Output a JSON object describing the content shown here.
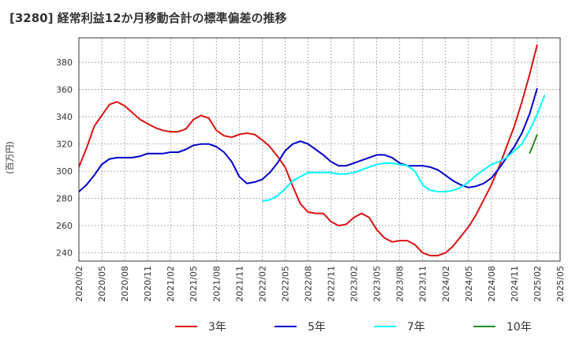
{
  "title": "[3280]  経常利益12か月移動合計の標準偏差の推移",
  "chart_data": {
    "type": "line",
    "title": "[3280]  経常利益12か月移動合計の標準偏差の推移",
    "ylabel": "(百万円)",
    "xlabel": "",
    "ylim": [
      234,
      398
    ],
    "yticks": [
      240,
      260,
      280,
      300,
      320,
      340,
      360,
      380
    ],
    "xlim": [
      "2020-02",
      "2025-05"
    ],
    "xticks": [
      "2020/02",
      "2020/05",
      "2020/08",
      "2020/11",
      "2021/02",
      "2021/05",
      "2021/08",
      "2021/11",
      "2022/02",
      "2022/05",
      "2022/08",
      "2022/11",
      "2023/02",
      "2023/05",
      "2023/08",
      "2023/11",
      "2024/02",
      "2024/05",
      "2024/08",
      "2024/11",
      "2025/02",
      "2025/05"
    ],
    "grid": true,
    "legend_position": "bottom",
    "series": [
      {
        "name": "3年",
        "color": "#dd1111",
        "start": "2020-02",
        "values": [
          303,
          317,
          333,
          341,
          349,
          351,
          348,
          343,
          338,
          335,
          332,
          330,
          329,
          329,
          331,
          338,
          341,
          339,
          330,
          326,
          325,
          327,
          328,
          327,
          323,
          318,
          311,
          303,
          289,
          276,
          270,
          269,
          269,
          263,
          260,
          261,
          266,
          269,
          266,
          257,
          251,
          248,
          249,
          249,
          246,
          240,
          238,
          238,
          240,
          245,
          252,
          259,
          268,
          279,
          290,
          303,
          318,
          333,
          351,
          371,
          393
        ]
      },
      {
        "name": "5年",
        "color": "#0000cc",
        "start": "2020-02",
        "values": [
          285,
          290,
          297,
          305,
          309,
          310,
          310,
          310,
          311,
          313,
          313,
          313,
          314,
          314,
          316,
          319,
          320,
          320,
          318,
          314,
          307,
          296,
          291,
          292,
          294,
          299,
          306,
          315,
          320,
          322,
          320,
          316,
          312,
          307,
          304,
          304,
          306,
          308,
          310,
          312,
          312,
          310,
          306,
          304,
          304,
          304,
          303,
          301,
          297,
          293,
          290,
          288,
          289,
          291,
          295,
          302,
          310,
          318,
          328,
          342,
          361
        ]
      },
      {
        "name": "7年",
        "color": "#00ffff",
        "start": "2022-02",
        "values": [
          278,
          279,
          282,
          287,
          293,
          296,
          299,
          299,
          299,
          299,
          298,
          298,
          299,
          301,
          303,
          305,
          306,
          306,
          305,
          304,
          300,
          290,
          286,
          285,
          285,
          286,
          288,
          292,
          297,
          301,
          305,
          307,
          310,
          315,
          320,
          330,
          342,
          356
        ]
      },
      {
        "name": "10年",
        "color": "#228b22",
        "start": "2025-01",
        "values": [
          313,
          327
        ]
      }
    ]
  }
}
